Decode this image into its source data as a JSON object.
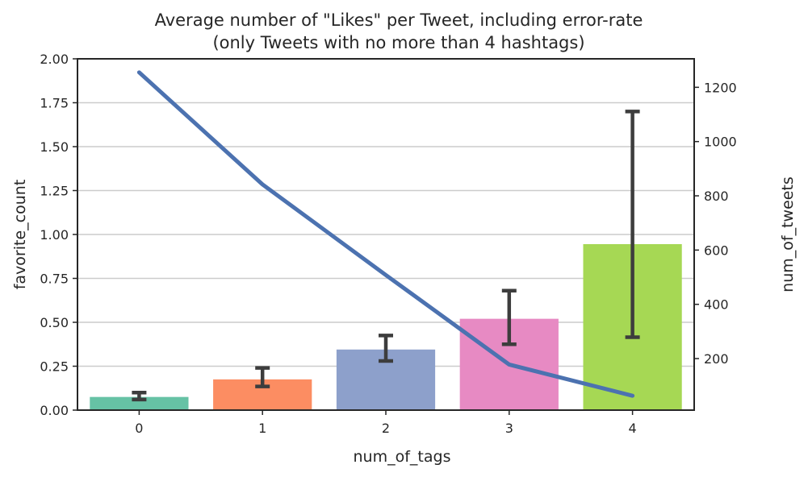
{
  "chart_data": {
    "type": "bar",
    "title_line1": "Average number of \"Likes\" per Tweet, including error-rate",
    "title_line2": "(only Tweets with no more than 4 hashtags)",
    "xlabel": "num_of_tags",
    "ylabel": "favorite_count",
    "y2label": "num_of_tweets",
    "categories": [
      "0",
      "1",
      "2",
      "3",
      "4"
    ],
    "bar_values": [
      0.075,
      0.175,
      0.345,
      0.52,
      0.945
    ],
    "bar_error_low": [
      0.06,
      0.135,
      0.28,
      0.375,
      0.415
    ],
    "bar_error_high": [
      0.1,
      0.24,
      0.425,
      0.68,
      1.7
    ],
    "bar_colors": [
      "#66c2a5",
      "#fc8d62",
      "#8da0cb",
      "#e78ac3",
      "#a6d854"
    ],
    "ylim": [
      0,
      2.0
    ],
    "yticks": [
      "0.00",
      "0.25",
      "0.50",
      "0.75",
      "1.00",
      "1.25",
      "1.50",
      "1.75",
      "2.00"
    ],
    "line_series": {
      "values": [
        1255,
        842,
        508,
        178,
        63
      ],
      "color": "#4c72b0"
    },
    "y2lim": [
      10,
      1305
    ],
    "y2ticks": [
      200,
      400,
      600,
      800,
      1000,
      1200
    ],
    "grid": "horizontal",
    "errorbar_color": "#3d3d3d"
  }
}
